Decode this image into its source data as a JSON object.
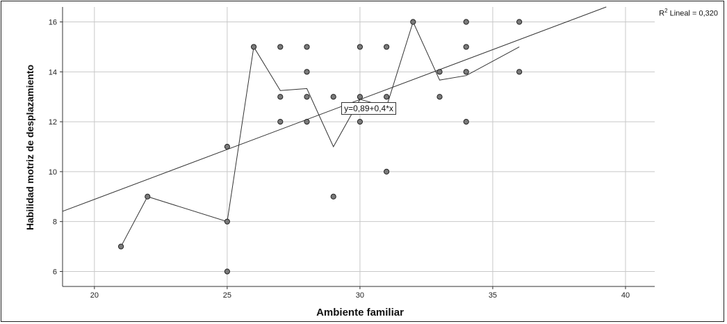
{
  "chart_data": {
    "type": "scatter",
    "xlabel": "Ambiente familiar",
    "ylabel": "Habilidad motriz de desplazamiento",
    "xlim": [
      18.8,
      41.1
    ],
    "ylim": [
      5.4,
      16.6
    ],
    "xticks": [
      20,
      25,
      30,
      35,
      40
    ],
    "yticks": [
      6,
      8,
      10,
      12,
      14,
      16
    ],
    "grid": true,
    "points": [
      {
        "x": 21,
        "y": 7
      },
      {
        "x": 22,
        "y": 9
      },
      {
        "x": 25,
        "y": 6
      },
      {
        "x": 25,
        "y": 8
      },
      {
        "x": 25,
        "y": 11
      },
      {
        "x": 26,
        "y": 15
      },
      {
        "x": 27,
        "y": 15
      },
      {
        "x": 27,
        "y": 13
      },
      {
        "x": 27,
        "y": 12
      },
      {
        "x": 28,
        "y": 15
      },
      {
        "x": 28,
        "y": 14
      },
      {
        "x": 28,
        "y": 13
      },
      {
        "x": 28,
        "y": 12
      },
      {
        "x": 29,
        "y": 13
      },
      {
        "x": 29,
        "y": 9
      },
      {
        "x": 30,
        "y": 15
      },
      {
        "x": 30,
        "y": 13
      },
      {
        "x": 30,
        "y": 12
      },
      {
        "x": 31,
        "y": 15
      },
      {
        "x": 31,
        "y": 13
      },
      {
        "x": 31,
        "y": 10
      },
      {
        "x": 32,
        "y": 16
      },
      {
        "x": 33,
        "y": 14
      },
      {
        "x": 33,
        "y": 13
      },
      {
        "x": 34,
        "y": 16
      },
      {
        "x": 34,
        "y": 15
      },
      {
        "x": 34,
        "y": 14
      },
      {
        "x": 34,
        "y": 12
      },
      {
        "x": 36,
        "y": 16
      },
      {
        "x": 36,
        "y": 14
      }
    ],
    "mean_line": [
      {
        "x": 21,
        "y": 7
      },
      {
        "x": 22,
        "y": 9
      },
      {
        "x": 25,
        "y": 8
      },
      {
        "x": 26,
        "y": 15
      },
      {
        "x": 27,
        "y": 13.25
      },
      {
        "x": 28,
        "y": 13.33
      },
      {
        "x": 29,
        "y": 11
      },
      {
        "x": 30,
        "y": 12.9
      },
      {
        "x": 31,
        "y": 12.6
      },
      {
        "x": 32,
        "y": 16
      },
      {
        "x": 33,
        "y": 13.67
      },
      {
        "x": 34,
        "y": 13.85
      },
      {
        "x": 36,
        "y": 15
      }
    ],
    "fit_line": {
      "intercept": 0.89,
      "slope": 0.4
    },
    "fit_label": "y=0,89+0,4*x",
    "fit_label_at": {
      "x": 29.3,
      "y": 12.5
    },
    "r2_prefix": "R",
    "r2_sup": "2",
    "r2_text": " Lineal = 0,320",
    "colors": {
      "point_fill": "#7a7a7a",
      "point_stroke": "#222222",
      "line": "#333333",
      "grid": "#c8c8c8",
      "axis": "#333333"
    }
  }
}
